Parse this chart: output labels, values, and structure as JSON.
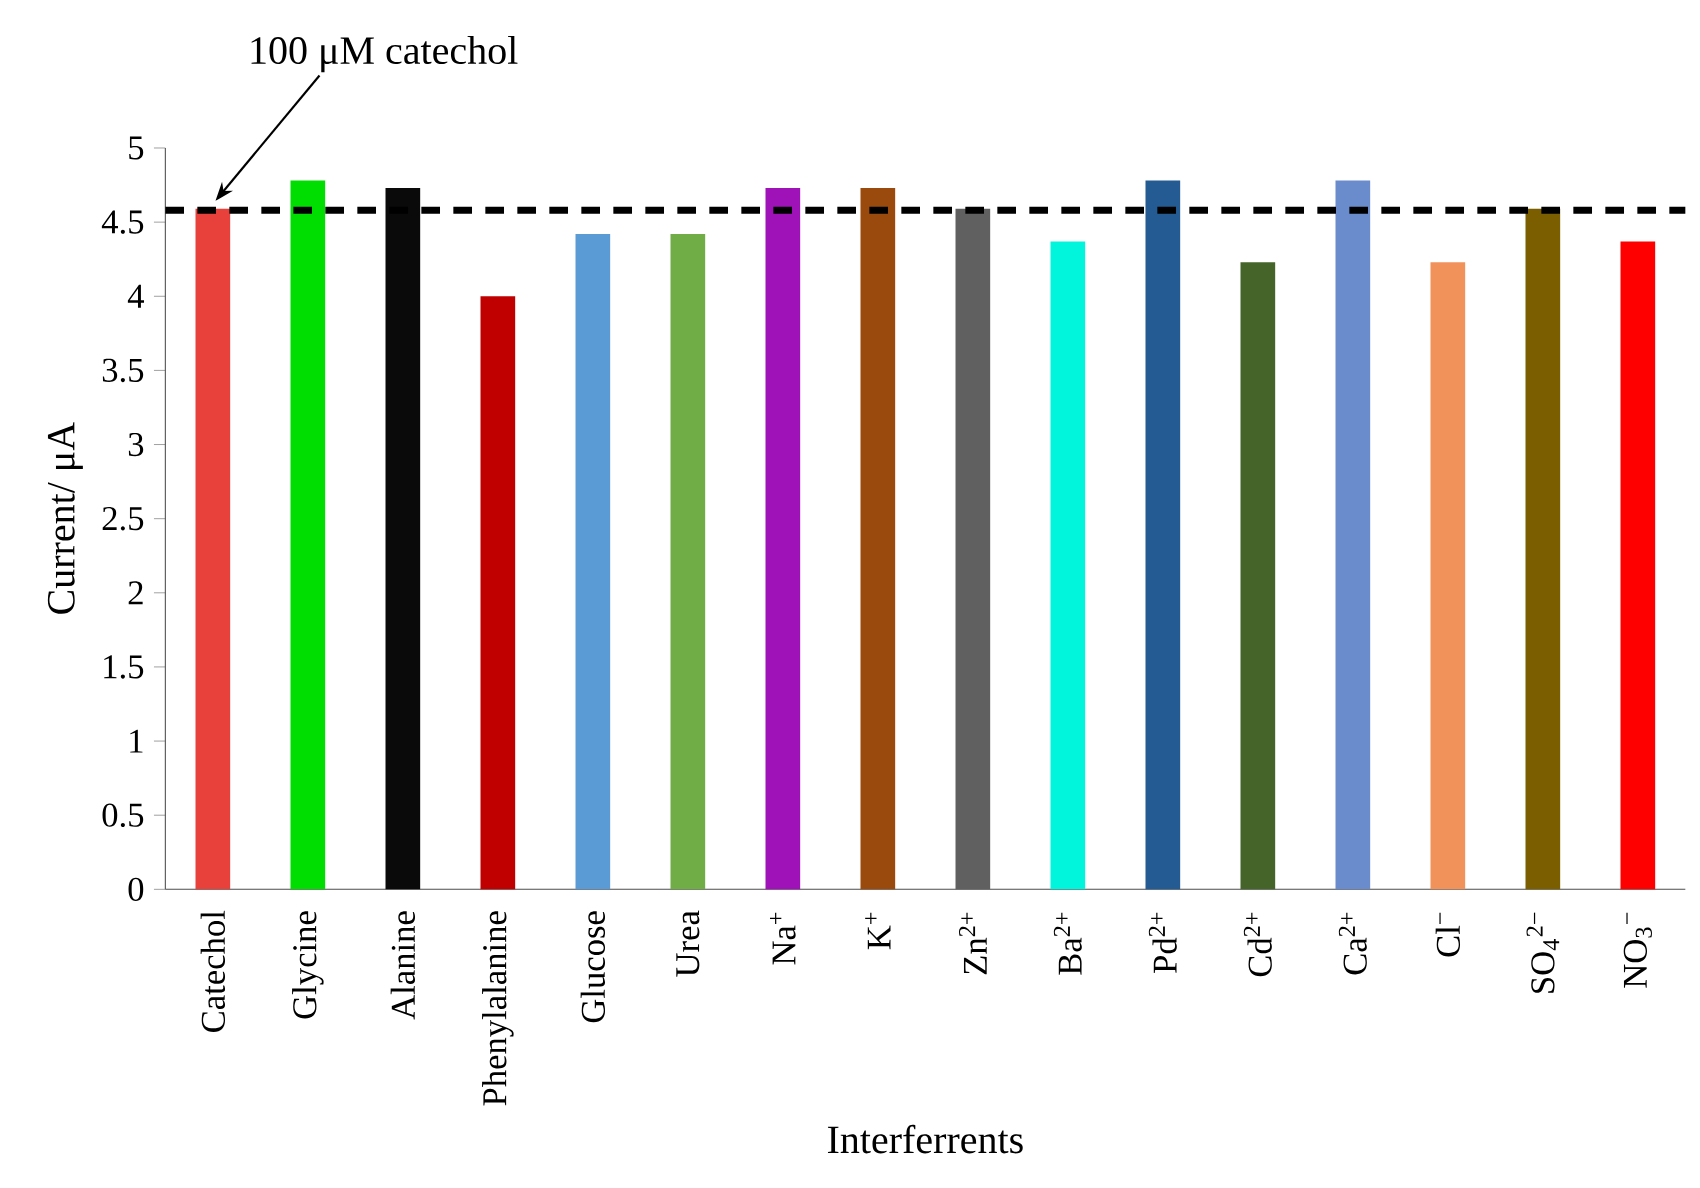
{
  "chart_data": {
    "type": "bar",
    "xlabel": "Interferrents",
    "ylabel": "Current/ μA",
    "categories": [
      "Catechol",
      "Glycine",
      "Alanine",
      "Phenylalanine",
      "Glucose",
      "Urea",
      "Na$^{+}$",
      "K$^{+}$",
      "Zn$^{2+}$",
      "Ba$^{2+}$",
      "Pd$^{2+}$",
      "Cd$^{2+}$",
      "Ca$^{2+}$",
      "Cl$^{−}$",
      "SO$_{4}$$^{2−}$",
      "NO$_{3}$$^{−}$"
    ],
    "values": [
      4.59,
      4.78,
      4.73,
      4.0,
      4.42,
      4.42,
      4.73,
      4.73,
      4.59,
      4.37,
      4.78,
      4.23,
      4.78,
      4.23,
      4.59,
      4.37
    ],
    "colors": [
      "#e8413c",
      "#00dd00",
      "#0a0a0a",
      "#c00000",
      "#5b9bd5",
      "#70ad47",
      "#9e12b8",
      "#9a4a0c",
      "#606060",
      "#00f5dc",
      "#235b92",
      "#446429",
      "#6b8ccc",
      "#f2925b",
      "#7b5e00",
      "#ff0000"
    ],
    "ylim": [
      0,
      5
    ],
    "yticks": [
      0,
      0.5,
      1,
      1.5,
      2,
      2.5,
      3,
      3.5,
      4,
      4.5,
      5
    ],
    "ref_lines": [
      {
        "axis": "y",
        "value": 4.58,
        "color": "#000000",
        "line_style": "dashed"
      }
    ],
    "annotations": [
      "100 μM catechol"
    ]
  }
}
